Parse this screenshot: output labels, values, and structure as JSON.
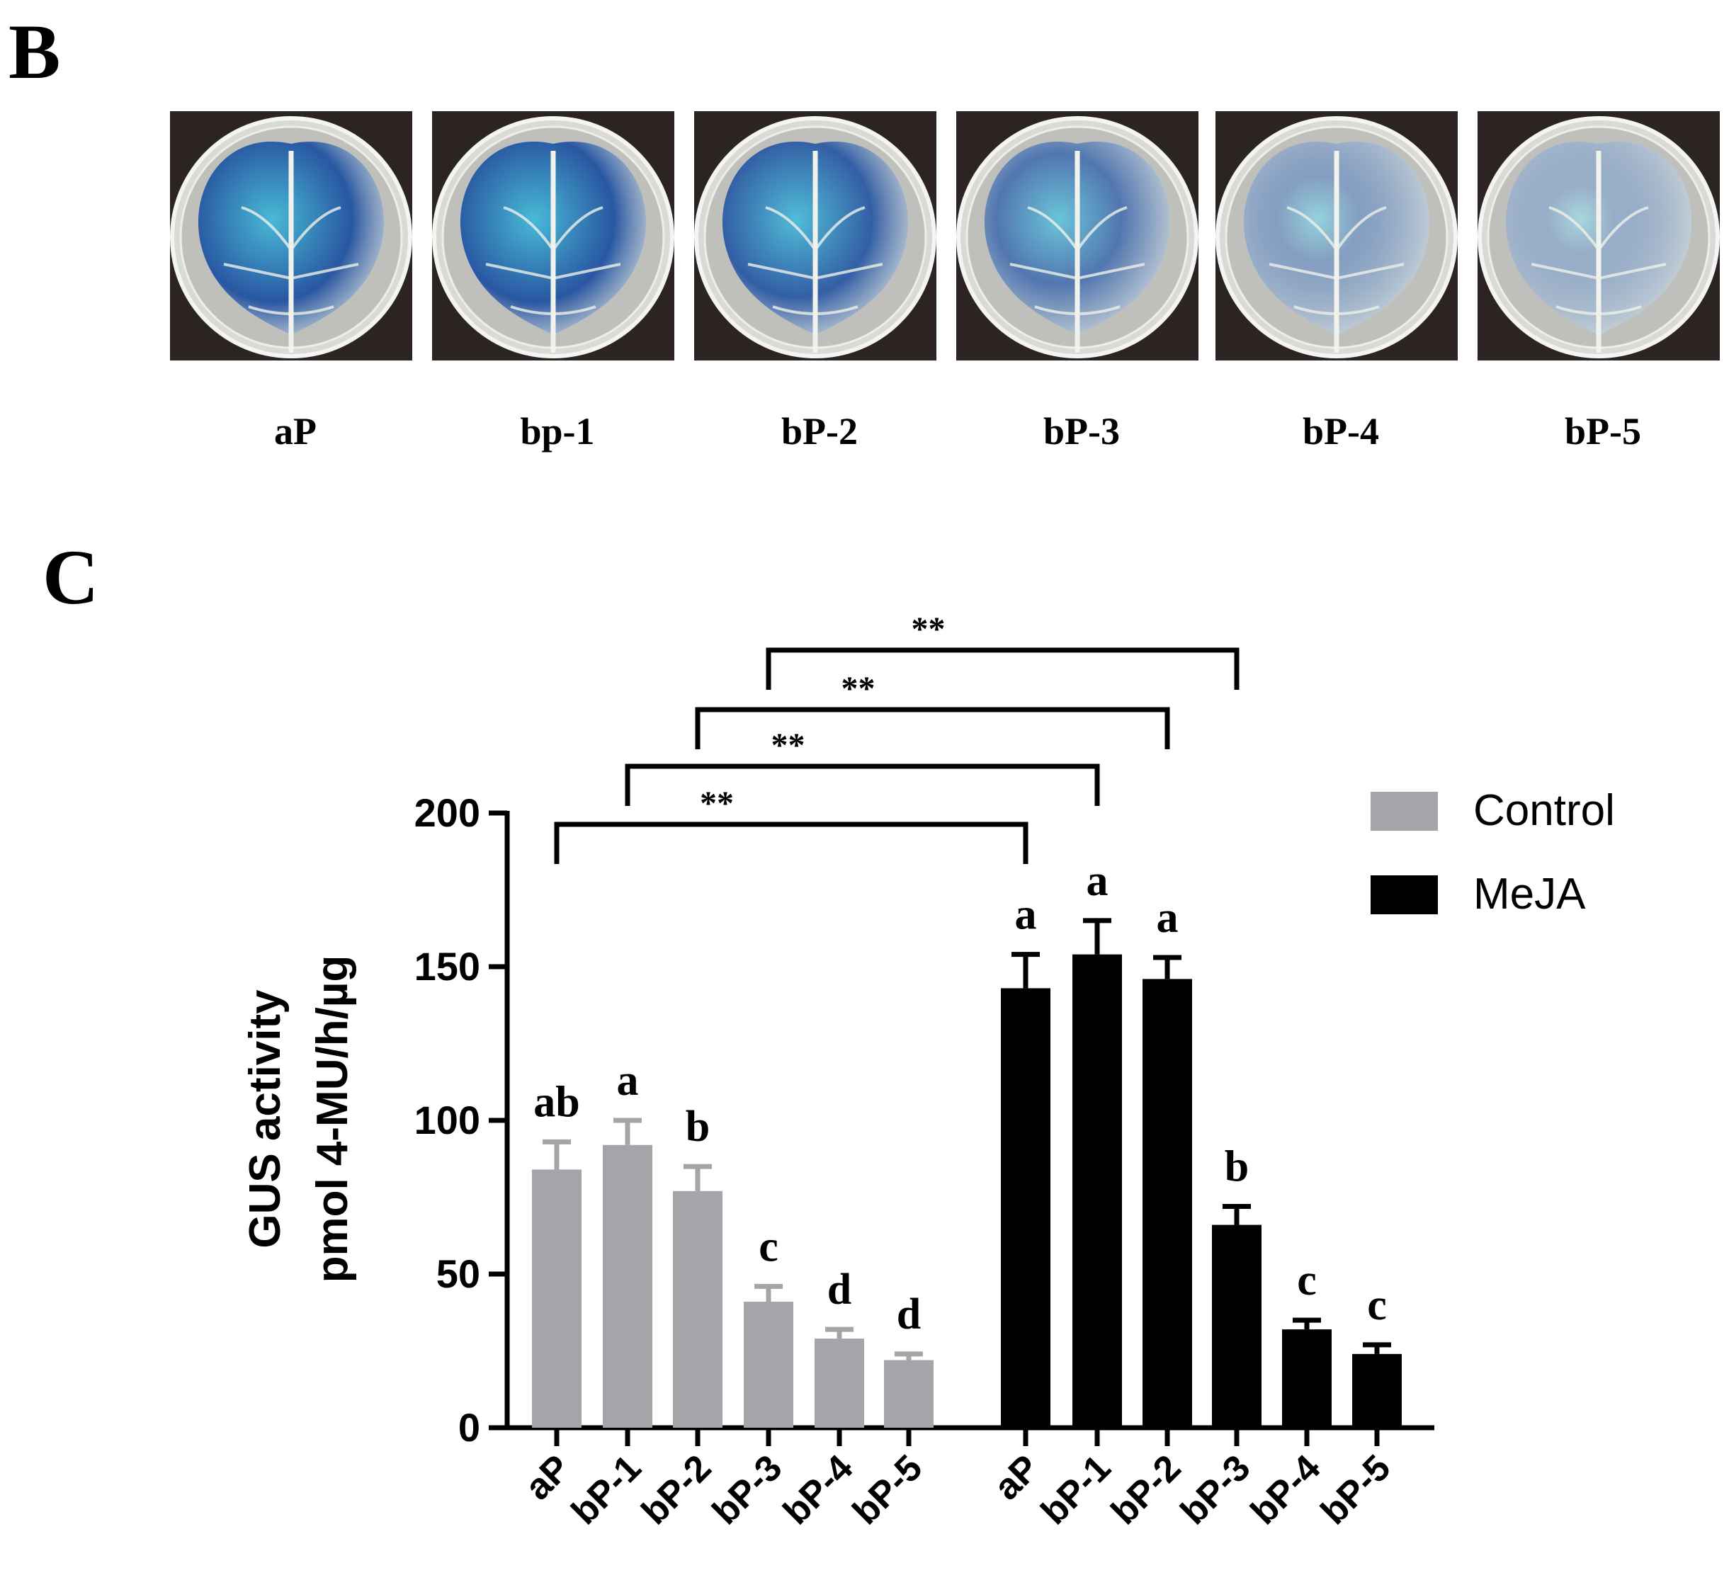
{
  "panel_b": {
    "label": "B",
    "samples": [
      {
        "name": "aP",
        "stain": 0.95
      },
      {
        "name": "bp-1",
        "stain": 0.95
      },
      {
        "name": "bP-2",
        "stain": 0.9
      },
      {
        "name": "bP-3",
        "stain": 0.75
      },
      {
        "name": "bP-4",
        "stain": 0.5
      },
      {
        "name": "bP-5",
        "stain": 0.4
      }
    ]
  },
  "panel_c": {
    "label": "C"
  },
  "colors": {
    "control": "#a4a5a8",
    "meja": "#000000",
    "stain_dark": "#1f4f9e",
    "stain_light": "#3fb7d6",
    "leaf": "#e9ece3",
    "photo_bg": "#2b2422"
  },
  "chart_data": {
    "type": "bar",
    "ylabel_line1": "GUS activity",
    "ylabel_line2": "pmol 4-MU/h/µg",
    "ylim": [
      0,
      200
    ],
    "yticks": [
      0,
      50,
      100,
      150,
      200
    ],
    "legend": [
      {
        "label": "Control",
        "color": "#a4a5a8"
      },
      {
        "label": "MeJA",
        "color": "#000000"
      }
    ],
    "legend_position": "top-right",
    "series": [
      {
        "name": "Control",
        "categories": [
          "aP",
          "bP-1",
          "bP-2",
          "bP-3",
          "bP-4",
          "bP-5"
        ],
        "values": [
          84,
          92,
          77,
          41,
          29,
          22
        ],
        "errors": [
          9,
          8,
          8,
          5,
          3,
          2
        ],
        "letters": [
          "ab",
          "a",
          "b",
          "c",
          "d",
          "d"
        ]
      },
      {
        "name": "MeJA",
        "categories": [
          "aP",
          "bP-1",
          "bP-2",
          "bP-3",
          "bP-4",
          "bP-5"
        ],
        "values": [
          143,
          154,
          146,
          66,
          32,
          24
        ],
        "errors": [
          11,
          11,
          7,
          6,
          3,
          3
        ],
        "letters": [
          "a",
          "a",
          "a",
          "b",
          "c",
          "c"
        ]
      }
    ],
    "significance": [
      {
        "from": 0,
        "to": 6,
        "label": "**"
      },
      {
        "from": 1,
        "to": 7,
        "label": "**"
      },
      {
        "from": 2,
        "to": 8,
        "label": "**"
      },
      {
        "from": 3,
        "to": 9,
        "label": "**"
      }
    ]
  }
}
